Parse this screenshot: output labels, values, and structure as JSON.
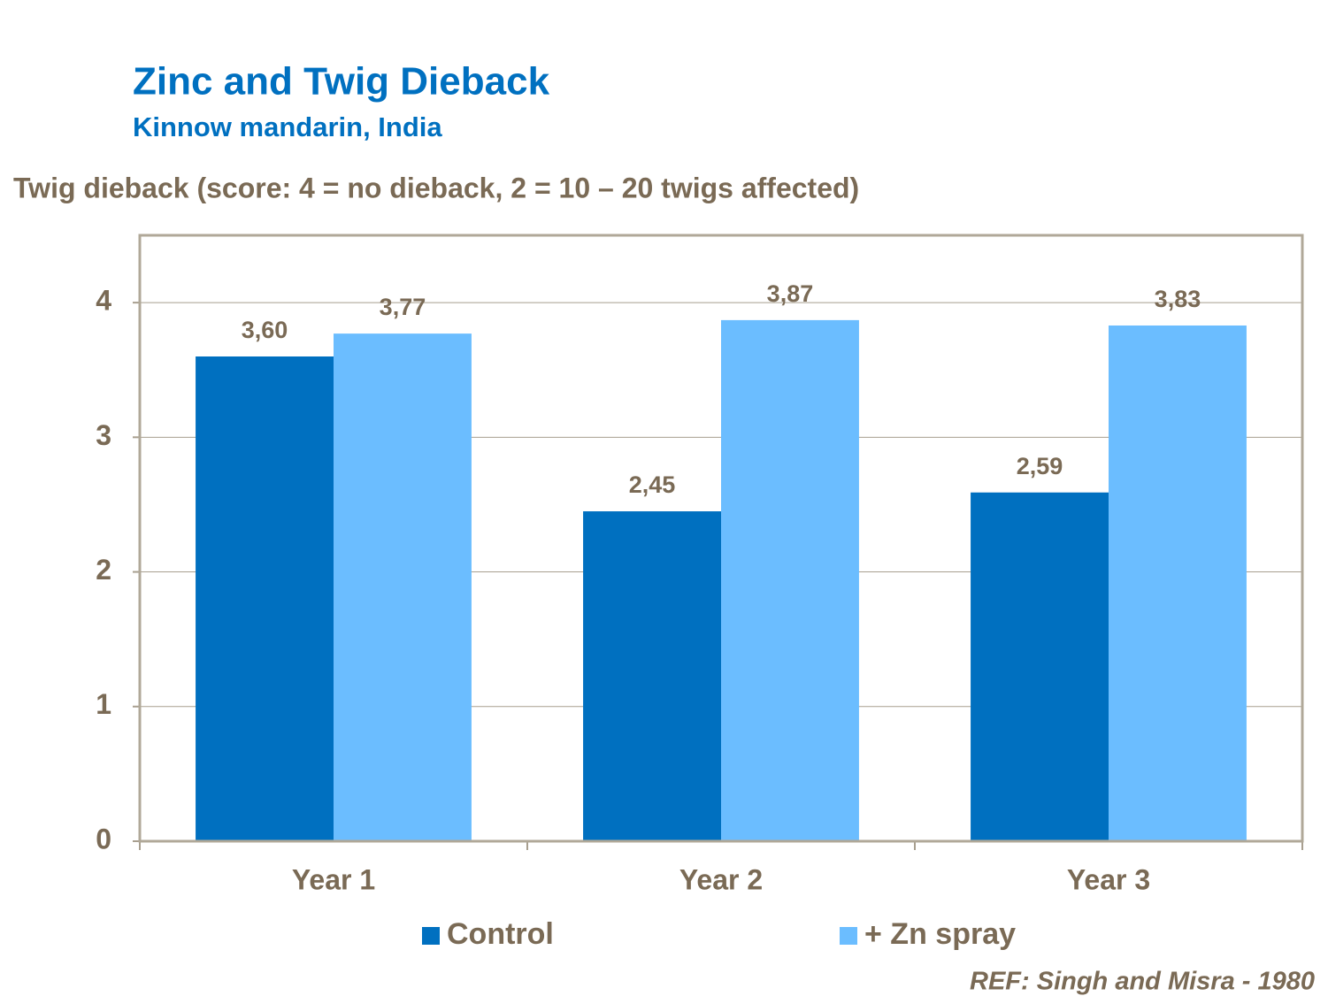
{
  "chart_data": {
    "type": "bar",
    "title": "Zinc and Twig Dieback",
    "subtitle": "Kinnow mandarin, India",
    "y_label": "Twig dieback (score: 4 = no dieback, 2 = 10 – 20 twigs affected)",
    "note": "REF: Singh and Misra - 1980",
    "categories": [
      "Year 1",
      "Year 2",
      "Year 3"
    ],
    "series": [
      {
        "name": "Control",
        "color": "#0070c0",
        "values": [
          3.6,
          2.45,
          2.59
        ],
        "value_labels": [
          "3,60",
          "2,45",
          "2,59"
        ]
      },
      {
        "name": "+ Zn spray",
        "color": "#6bbdff",
        "values": [
          3.77,
          3.87,
          3.83
        ],
        "value_labels": [
          "3,77",
          "3,87",
          "3,83"
        ]
      }
    ],
    "ylim": [
      0,
      4.5
    ],
    "yticks": [
      0,
      1,
      2,
      3,
      4
    ],
    "grid": true
  }
}
